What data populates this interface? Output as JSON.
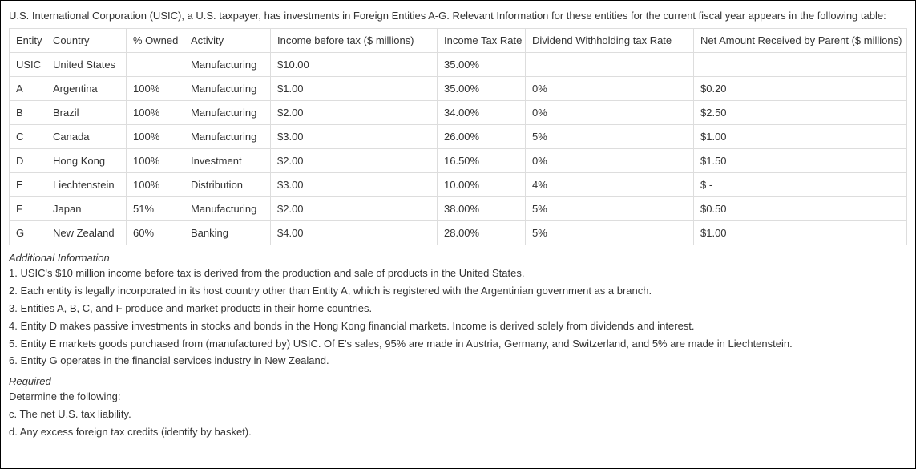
{
  "intro": "U.S. International Corporation (USIC), a U.S. taxpayer, has investments in Foreign Entities A-G. Relevant Information for these entities for the current fiscal year appears in the following table:",
  "table": {
    "headers": {
      "entity": "Entity",
      "country": "Country",
      "owned": "% Owned",
      "activity": "Activity",
      "income": "Income before tax ($ millions)",
      "taxrate": "Income Tax Rate",
      "withhold": "Dividend Withholding tax Rate",
      "net": "Net Amount Received by Parent ($ millions)"
    },
    "rows": [
      {
        "entity": "USIC",
        "country": "United States",
        "owned": "",
        "activity": "Manufacturing",
        "income": "$10.00",
        "taxrate": "35.00%",
        "withhold": "",
        "net": ""
      },
      {
        "entity": "A",
        "country": "Argentina",
        "owned": "100%",
        "activity": "Manufacturing",
        "income": "$1.00",
        "taxrate": "35.00%",
        "withhold": "0%",
        "net": "$0.20"
      },
      {
        "entity": "B",
        "country": "Brazil",
        "owned": "100%",
        "activity": "Manufacturing",
        "income": "$2.00",
        "taxrate": "34.00%",
        "withhold": "0%",
        "net": "$2.50"
      },
      {
        "entity": "C",
        "country": "Canada",
        "owned": "100%",
        "activity": "Manufacturing",
        "income": "$3.00",
        "taxrate": "26.00%",
        "withhold": "5%",
        "net": "$1.00"
      },
      {
        "entity": "D",
        "country": "Hong Kong",
        "owned": "100%",
        "activity": "Investment",
        "income": "$2.00",
        "taxrate": "16.50%",
        "withhold": "0%",
        "net": "$1.50"
      },
      {
        "entity": "E",
        "country": "Liechtenstein",
        "owned": "100%",
        "activity": "Distribution",
        "income": "$3.00",
        "taxrate": "10.00%",
        "withhold": "4%",
        "net": "$ -"
      },
      {
        "entity": "F",
        "country": "Japan",
        "owned": "51%",
        "activity": "Manufacturing",
        "income": "$2.00",
        "taxrate": "38.00%",
        "withhold": "5%",
        "net": "$0.50"
      },
      {
        "entity": "G",
        "country": "New Zealand",
        "owned": "60%",
        "activity": "Banking",
        "income": "$4.00",
        "taxrate": "28.00%",
        "withhold": "5%",
        "net": "$1.00"
      }
    ]
  },
  "additional_heading": "Additional Information",
  "notes": {
    "n1": "1. USIC's $10 million income before tax is derived from the production and sale of products in the United States.",
    "n2": "2. Each entity is legally incorporated in its host country other than Entity A, which is registered with the Argentinian government as a branch.",
    "n3": "3. Entities A, B, C, and F produce and market products in their home countries.",
    "n4": "4. Entity D makes passive investments in stocks and bonds in the Hong Kong financial markets. Income is derived solely from dividends and interest.",
    "n5": "5. Entity E markets goods purchased from (manufactured by) USIC. Of E's sales, 95% are made in Austria, Germany, and Switzerland, and 5% are made in Liechtenstein.",
    "n6": "6. Entity G operates in the financial services industry in New Zealand."
  },
  "required_heading": "Required",
  "required": {
    "r0": "Determine the following:",
    "rc": "c. The net U.S. tax liability.",
    "rd": "d. Any excess foreign tax credits (identify by basket)."
  }
}
